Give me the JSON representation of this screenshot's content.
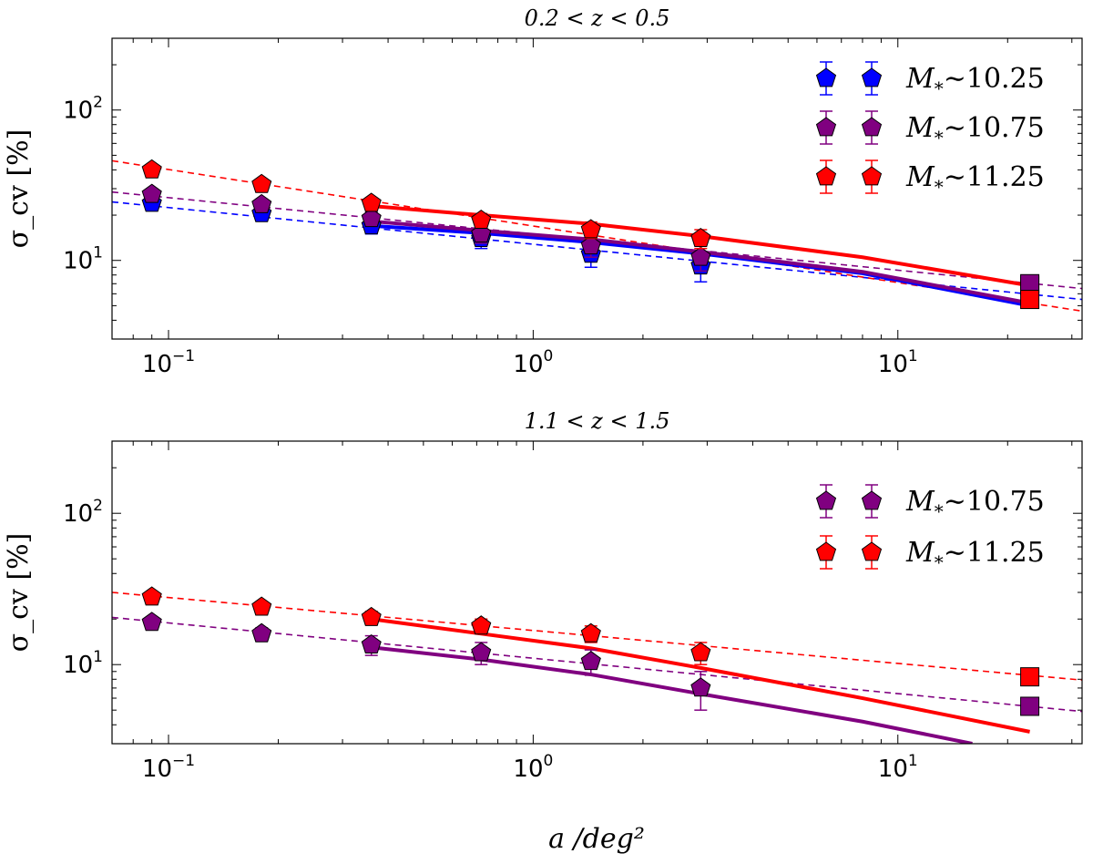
{
  "chart_data": [
    {
      "type": "scatter",
      "title": "0.2 < z < 0.5",
      "xlabel": "",
      "ylabel": "σ_cv [%]",
      "xscale": "log",
      "yscale": "log",
      "xlim": [
        0.07,
        32
      ],
      "ylim": [
        3,
        300
      ],
      "x_ticks": [
        {
          "value": 0.1,
          "base": "10",
          "exp": "−1"
        },
        {
          "value": 1,
          "base": "10",
          "exp": "0"
        },
        {
          "value": 10,
          "base": "10",
          "exp": "1"
        }
      ],
      "y_ticks": [
        {
          "value": 10,
          "base": "10",
          "exp": "1"
        },
        {
          "value": 100,
          "base": "10",
          "exp": "2"
        }
      ],
      "grid": false,
      "legend_position": "top-right",
      "series": [
        {
          "name": "M_* ~10.25",
          "mass_label": "M",
          "mass_sub": "*",
          "mass_value": "∼10.25",
          "color": "#0000ff",
          "x": [
            0.09,
            0.18,
            0.36,
            0.72,
            1.44,
            2.88
          ],
          "y": [
            24,
            20.5,
            17,
            14,
            11,
            9.2
          ],
          "err_low": [
            2,
            2,
            2,
            2,
            2,
            2
          ],
          "err_high": [
            2,
            2,
            2,
            2,
            2,
            2
          ],
          "model_x": [
            0.36,
            0.72,
            1.44,
            2.88,
            8,
            23
          ],
          "model_y": [
            17,
            15.2,
            13.2,
            11.1,
            8.2,
            5
          ],
          "fit_x": [
            0.07,
            32
          ],
          "fit_y": [
            24.5,
            5.5
          ],
          "square": {
            "x": 23,
            "y": 6.8
          }
        },
        {
          "name": "M_* ~10.75",
          "mass_label": "M",
          "mass_sub": "*",
          "mass_value": "∼10.75",
          "color": "#800080",
          "x": [
            0.09,
            0.18,
            0.36,
            0.72,
            1.44,
            2.88
          ],
          "y": [
            27.5,
            23.5,
            19,
            15,
            12.5,
            10.5
          ],
          "err_low": [
            2,
            2,
            2,
            2,
            2,
            2
          ],
          "err_high": [
            2,
            2,
            2,
            2,
            2,
            2
          ],
          "model_x": [
            0.36,
            0.72,
            1.44,
            2.88,
            8,
            23
          ],
          "model_y": [
            18.2,
            15.8,
            13.8,
            11.4,
            8.4,
            5.2
          ],
          "fit_x": [
            0.07,
            32
          ],
          "fit_y": [
            28.5,
            6.5
          ],
          "square": {
            "x": 23,
            "y": 7
          }
        },
        {
          "name": "M_* ~11.25",
          "mass_label": "M",
          "mass_sub": "*",
          "mass_value": "∼11.25",
          "color": "#ff0000",
          "x": [
            0.09,
            0.18,
            0.36,
            0.72,
            1.44,
            2.88
          ],
          "y": [
            40,
            32,
            24,
            18.5,
            16,
            14
          ],
          "err_low": [
            2,
            2,
            2,
            2,
            2,
            2
          ],
          "err_high": [
            2,
            2,
            2,
            2,
            2,
            2
          ],
          "model_x": [
            0.36,
            0.72,
            1.44,
            2.88,
            8,
            23
          ],
          "model_y": [
            23,
            20,
            17.5,
            14.5,
            10.5,
            6.8
          ],
          "fit_x": [
            0.07,
            32
          ],
          "fit_y": [
            46,
            4.6
          ],
          "square": {
            "x": 23,
            "y": 5.5
          }
        }
      ]
    },
    {
      "type": "scatter",
      "title": "1.1 < z < 1.5",
      "xlabel": "a /deg²",
      "ylabel": "σ_cv [%]",
      "xscale": "log",
      "yscale": "log",
      "xlim": [
        0.07,
        32
      ],
      "ylim": [
        3,
        300
      ],
      "x_ticks": [
        {
          "value": 0.1,
          "base": "10",
          "exp": "−1"
        },
        {
          "value": 1,
          "base": "10",
          "exp": "0"
        },
        {
          "value": 10,
          "base": "10",
          "exp": "1"
        }
      ],
      "y_ticks": [
        {
          "value": 10,
          "base": "10",
          "exp": "1"
        },
        {
          "value": 100,
          "base": "10",
          "exp": "2"
        }
      ],
      "grid": false,
      "legend_position": "top-right",
      "series": [
        {
          "name": "M_* ~10.75",
          "mass_label": "M",
          "mass_sub": "*",
          "mass_value": "∼10.75",
          "color": "#800080",
          "x": [
            0.09,
            0.18,
            0.36,
            0.72,
            1.44,
            2.88
          ],
          "y": [
            19,
            16,
            13.5,
            12,
            10.5,
            7
          ],
          "err_low": [
            1.5,
            1.5,
            2,
            2,
            2,
            2
          ],
          "err_high": [
            1.5,
            1.5,
            2,
            2,
            2,
            2
          ],
          "model_x": [
            0.36,
            0.72,
            1.44,
            2.88,
            8,
            16
          ],
          "model_y": [
            13,
            10.8,
            8.6,
            6.4,
            4.2,
            3
          ],
          "fit_x": [
            0.07,
            32
          ],
          "fit_y": [
            20.5,
            4.9
          ],
          "square": {
            "x": 23,
            "y": 5.3
          }
        },
        {
          "name": "M_* ~11.25",
          "mass_label": "M",
          "mass_sub": "*",
          "mass_value": "∼11.25",
          "color": "#ff0000",
          "x": [
            0.09,
            0.18,
            0.36,
            0.72,
            1.44,
            2.88
          ],
          "y": [
            28,
            24,
            20.5,
            18,
            16,
            12
          ],
          "err_low": [
            2,
            2,
            2,
            2,
            2,
            2
          ],
          "err_high": [
            2,
            2,
            2,
            2,
            2,
            2
          ],
          "model_x": [
            0.36,
            0.72,
            1.44,
            2.88,
            8,
            23
          ],
          "model_y": [
            20,
            16,
            12.8,
            9.5,
            6,
            3.6
          ],
          "fit_x": [
            0.07,
            32
          ],
          "fit_y": [
            30,
            7.9
          ],
          "square": {
            "x": 23,
            "y": 8.3
          }
        }
      ]
    }
  ]
}
